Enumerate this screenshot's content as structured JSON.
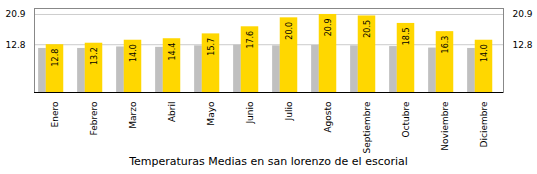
{
  "chart_data": {
    "type": "bar",
    "title": "Temperaturas Medias en san lorenzo de el escorial",
    "categories": [
      "Enero",
      "Febrero",
      "Marzo",
      "Abril",
      "Mayo",
      "Junio",
      "Julio",
      "Agosto",
      "Septiembre",
      "Octubre",
      "Noviembre",
      "Diciembre"
    ],
    "series": [
      {
        "color": "#C0C0C0",
        "values": [
          11.8,
          11.8,
          12.2,
          12.1,
          12.5,
          12.7,
          12.5,
          12.6,
          12.5,
          12.3,
          11.9,
          11.8
        ]
      },
      {
        "color": "#FFD700",
        "values": [
          12.8,
          13.2,
          14.0,
          14.4,
          15.7,
          17.6,
          20.0,
          20.9,
          20.5,
          18.5,
          16.3,
          14.0
        ],
        "value_labels": [
          "12.8",
          "13.2",
          "14.0",
          "14.4",
          "15.7",
          "17.6",
          "20.0",
          "20.9",
          "20.5",
          "18.5",
          "16.3",
          "14.0"
        ],
        "data_labels": true
      }
    ],
    "ylim": [
      0,
      22.5
    ],
    "yticks": [
      12.8,
      20.9
    ],
    "y2lim": [
      0,
      22.5
    ],
    "y2ticks": [
      12.8,
      20.9
    ],
    "grid": true
  }
}
